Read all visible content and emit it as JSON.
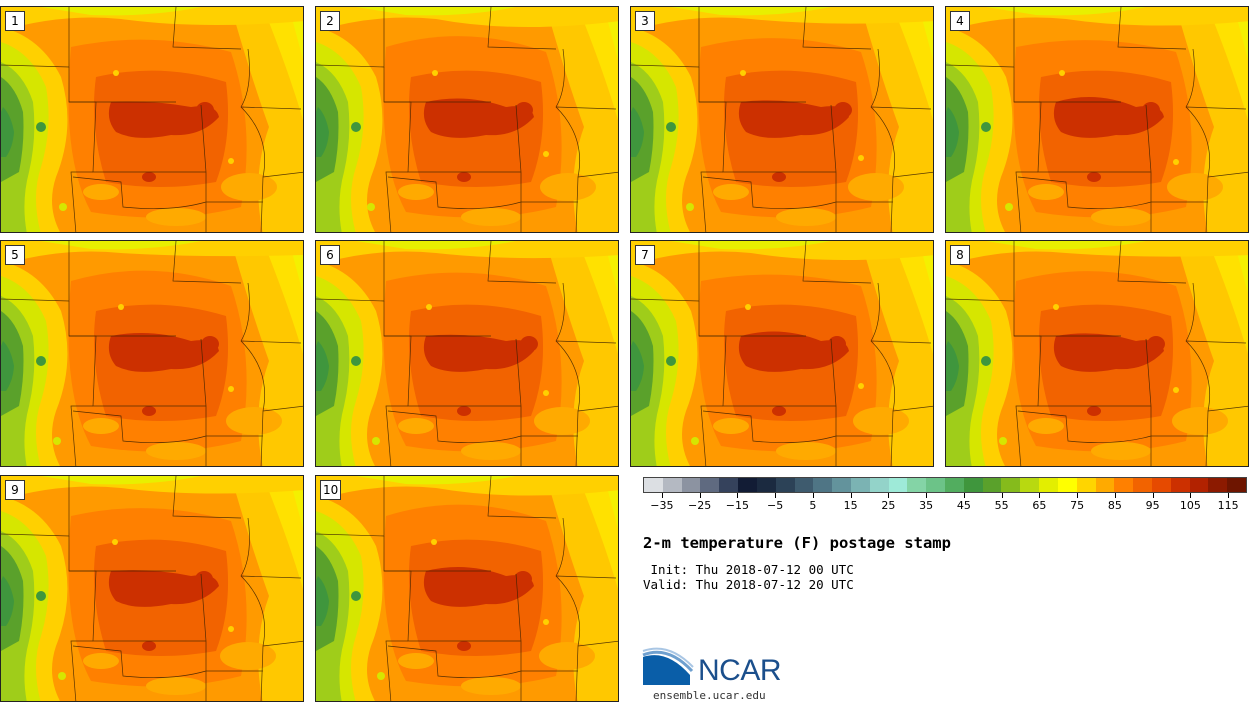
{
  "product": {
    "title": "2-m temperature (F) postage stamp",
    "init": " Init: Thu 2018-07-12 00 UTC",
    "valid": "Valid: Thu 2018-07-12 20 UTC"
  },
  "members": [
    {
      "label": "1"
    },
    {
      "label": "2"
    },
    {
      "label": "3"
    },
    {
      "label": "4"
    },
    {
      "label": "5"
    },
    {
      "label": "6"
    },
    {
      "label": "7"
    },
    {
      "label": "8"
    },
    {
      "label": "9"
    },
    {
      "label": "10"
    }
  ],
  "colorbar": {
    "colors": [
      "#dcdfe3",
      "#b4b9c2",
      "#8c93a1",
      "#5f6a80",
      "#35425c",
      "#121c35",
      "#1b2a40",
      "#2c4257",
      "#3e5b6e",
      "#4f7585",
      "#63939c",
      "#7bb3b3",
      "#93d3c9",
      "#9eead8",
      "#84d4a6",
      "#6cc388",
      "#52ad5f",
      "#3f963d",
      "#5aa12b",
      "#85bb1c",
      "#b8d910",
      "#e3ee00",
      "#ffff00",
      "#ffd500",
      "#ffaa00",
      "#ff8000",
      "#f26300",
      "#e64a00",
      "#cc3000",
      "#b22200",
      "#8c1a00",
      "#6e1500"
    ],
    "tick_labels": [
      "−35",
      "−25",
      "−15",
      "−5",
      "5",
      "15",
      "25",
      "35",
      "45",
      "55",
      "65",
      "75",
      "85",
      "95",
      "105",
      "115"
    ],
    "min": -40,
    "max": 120
  },
  "logo": {
    "name": "NCAR",
    "url": "ensemble.ucar.edu"
  }
}
